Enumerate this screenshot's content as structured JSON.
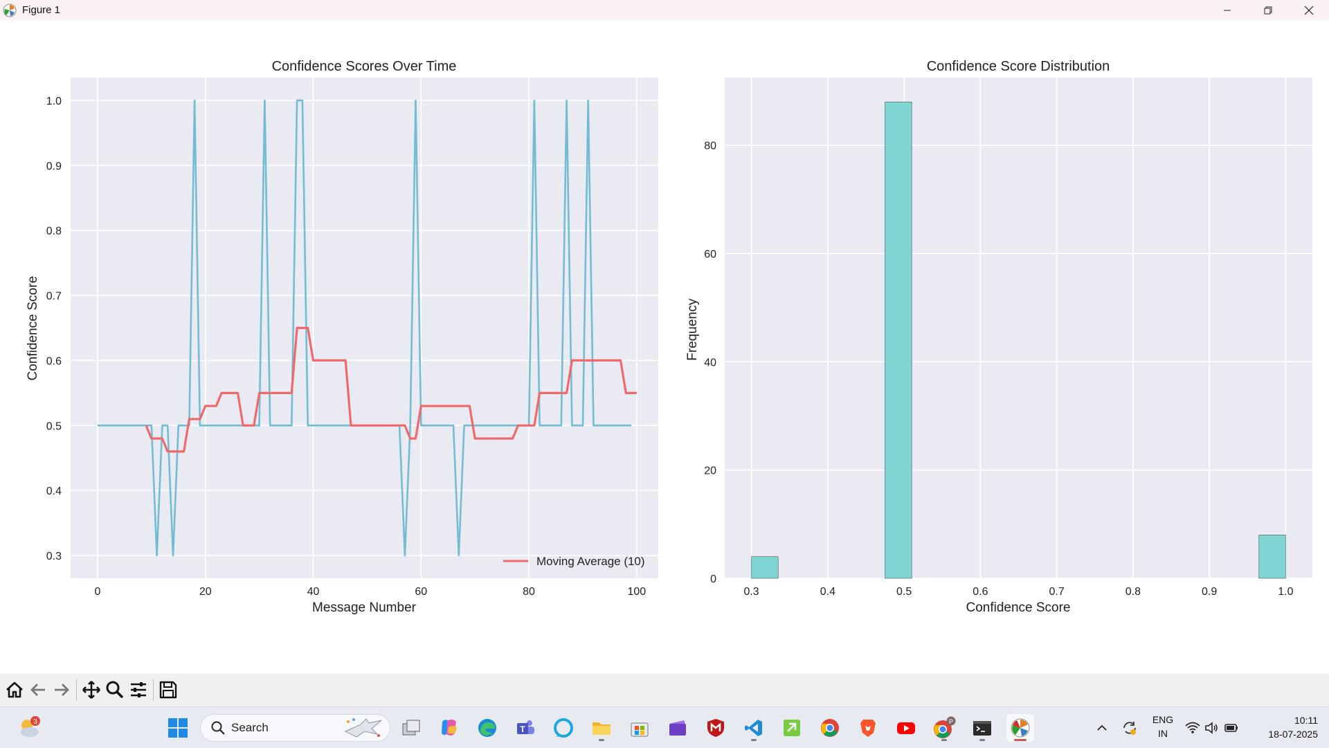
{
  "window": {
    "title": "Figure 1"
  },
  "left_plot": {
    "title": "Confidence Scores Over Time",
    "xlabel": "Message Number",
    "ylabel": "Confidence Score",
    "xticks": [
      "0",
      "20",
      "40",
      "60",
      "80",
      "100"
    ],
    "yticks": [
      "0.3",
      "0.4",
      "0.5",
      "0.6",
      "0.7",
      "0.8",
      "0.9",
      "1.0"
    ],
    "legend": "Moving Average (10)"
  },
  "right_plot": {
    "title": "Confidence Score Distribution",
    "xlabel": "Confidence Score",
    "ylabel": "Frequency",
    "xticks": [
      "0.3",
      "0.4",
      "0.5",
      "0.6",
      "0.7",
      "0.8",
      "0.9",
      "1.0"
    ],
    "yticks": [
      "0",
      "20",
      "40",
      "60",
      "80"
    ]
  },
  "chart_data": [
    {
      "type": "line",
      "title": "Confidence Scores Over Time",
      "xlabel": "Message Number",
      "ylabel": "Confidence Score",
      "xlim": [
        -5,
        104
      ],
      "ylim": [
        0.265,
        1.035
      ],
      "grid": true,
      "legend_position": "lower right",
      "series": [
        {
          "color": "#72bcd4",
          "x_start": 0,
          "values": [
            0.5,
            0.5,
            0.5,
            0.5,
            0.5,
            0.5,
            0.5,
            0.5,
            0.5,
            0.5,
            0.5,
            0.3,
            0.5,
            0.5,
            0.3,
            0.5,
            0.5,
            0.5,
            1.0,
            0.5,
            0.5,
            0.5,
            0.5,
            0.5,
            0.5,
            0.5,
            0.5,
            0.5,
            0.5,
            0.5,
            0.5,
            1.0,
            0.5,
            0.5,
            0.5,
            0.5,
            0.5,
            1.0,
            1.0,
            0.5,
            0.5,
            0.5,
            0.5,
            0.5,
            0.5,
            0.5,
            0.5,
            0.5,
            0.5,
            0.5,
            0.5,
            0.5,
            0.5,
            0.5,
            0.5,
            0.5,
            0.5,
            0.3,
            0.5,
            1.0,
            0.5,
            0.5,
            0.5,
            0.5,
            0.5,
            0.5,
            0.5,
            0.3,
            0.5,
            0.5,
            0.5,
            0.5,
            0.5,
            0.5,
            0.5,
            0.5,
            0.5,
            0.5,
            0.5,
            0.5,
            0.5,
            1.0,
            0.5,
            0.5,
            0.5,
            0.5,
            0.5,
            1.0,
            0.5,
            0.5,
            0.5,
            1.0,
            0.5,
            0.5,
            0.5,
            0.5,
            0.5,
            0.5,
            0.5,
            0.5
          ]
        },
        {
          "name": "Moving Average (10)",
          "color": "#f0696a",
          "x_start": 9,
          "values": [
            0.5,
            0.48,
            0.48,
            0.48,
            0.46,
            0.46,
            0.46,
            0.46,
            0.51,
            0.51,
            0.51,
            0.53,
            0.53,
            0.53,
            0.55,
            0.55,
            0.55,
            0.55,
            0.5,
            0.5,
            0.5,
            0.55,
            0.55,
            0.55,
            0.55,
            0.55,
            0.55,
            0.55,
            0.65,
            0.65,
            0.65,
            0.6,
            0.6,
            0.6,
            0.6,
            0.6,
            0.6,
            0.6,
            0.5,
            0.5,
            0.5,
            0.5,
            0.5,
            0.5,
            0.5,
            0.5,
            0.5,
            0.5,
            0.5,
            0.48,
            0.48,
            0.53,
            0.53,
            0.53,
            0.53,
            0.53,
            0.53,
            0.53,
            0.53,
            0.53,
            0.53,
            0.48,
            0.48,
            0.48,
            0.48,
            0.48,
            0.48,
            0.48,
            0.48,
            0.5,
            0.5,
            0.5,
            0.5,
            0.55,
            0.55,
            0.55,
            0.55,
            0.55,
            0.55,
            0.6,
            0.6,
            0.6,
            0.6,
            0.6,
            0.6,
            0.6,
            0.6,
            0.6,
            0.6,
            0.55,
            0.55,
            0.55
          ]
        }
      ]
    },
    {
      "type": "bar",
      "title": "Confidence Score Distribution",
      "xlabel": "Confidence Score",
      "ylabel": "Frequency",
      "xlim": [
        0.265,
        1.035
      ],
      "ylim": [
        0,
        92.5
      ],
      "grid": true,
      "color": "#78d4cf",
      "bin_width": 0.035,
      "bins": [
        {
          "start": 0.3,
          "value": 4
        },
        {
          "start": 0.475,
          "value": 88
        },
        {
          "start": 0.965,
          "value": 8
        }
      ]
    }
  ],
  "toolbar": {
    "buttons": [
      "home-icon",
      "back-icon",
      "forward-icon",
      "pan-icon",
      "zoom-icon",
      "configure-icon",
      "save-icon"
    ]
  },
  "taskbar": {
    "weather_badge": "3",
    "search_label": "Search",
    "chrome_badge": "P",
    "language": "ENG",
    "region": "IN",
    "time": "10:11",
    "date": "18-07-2025"
  }
}
